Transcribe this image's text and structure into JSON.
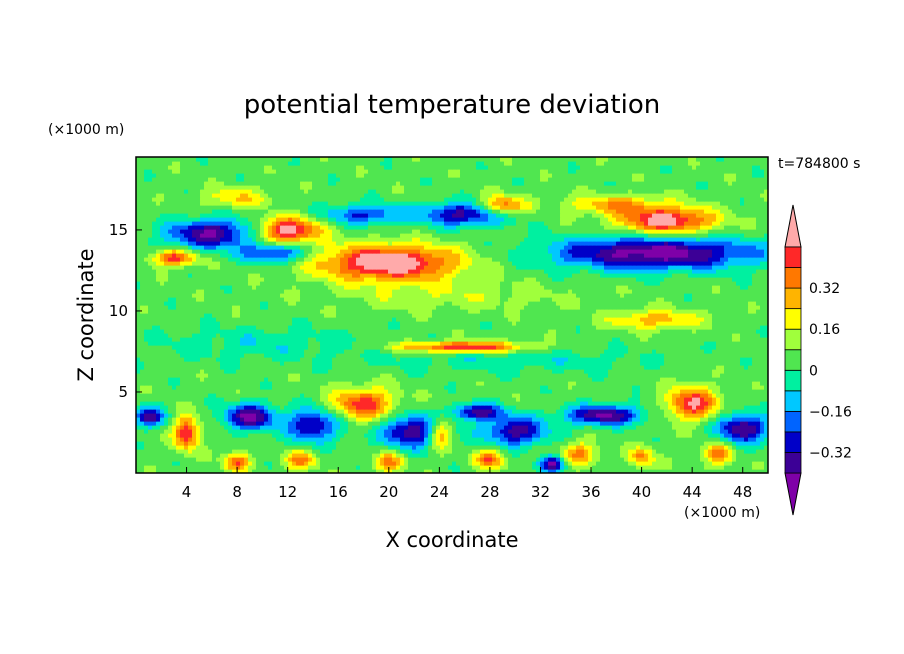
{
  "chart_data": {
    "type": "heatmap",
    "title": "potential temperature deviation",
    "xlabel": "X coordinate",
    "ylabel": "Z coordinate",
    "x_unit": "(×1000 m)",
    "y_unit": "(×1000 m)",
    "time_label": "t=784800 s",
    "xlim": [
      0,
      50
    ],
    "ylim": [
      0,
      19.5
    ],
    "x_ticks": [
      4,
      8,
      12,
      16,
      20,
      24,
      28,
      32,
      36,
      40,
      44,
      48
    ],
    "y_ticks": [
      5,
      10,
      15
    ],
    "colorbar": {
      "levels": [
        -0.48,
        -0.4,
        -0.32,
        -0.24,
        -0.16,
        -0.08,
        0,
        0.08,
        0.16,
        0.24,
        0.32,
        0.4,
        0.48
      ],
      "labels": [
        "0.32",
        "0.16",
        "0",
        "−0.16",
        "−0.32"
      ],
      "label_values": [
        0.32,
        0.16,
        0,
        -0.16,
        -0.32
      ],
      "colors": [
        "#7f00a8",
        "#3c0096",
        "#0000c8",
        "#0064ff",
        "#00c8ff",
        "#00f0a0",
        "#50e650",
        "#a0ff3c",
        "#ffff00",
        "#ffb400",
        "#ff7800",
        "#ff2828",
        "#ffaaaa"
      ]
    },
    "features": [
      {
        "x": 6,
        "z": 14.8,
        "v": -0.45,
        "sx": 3.5,
        "sz": 0.9
      },
      {
        "x": 12,
        "z": 15.0,
        "v": 0.5,
        "sx": 2.5,
        "sz": 0.8
      },
      {
        "x": 8,
        "z": 17.0,
        "v": 0.2,
        "sx": 2.5,
        "sz": 0.6
      },
      {
        "x": 20,
        "z": 13.0,
        "v": 0.55,
        "sx": 5.5,
        "sz": 1.1
      },
      {
        "x": 26,
        "z": 16.0,
        "v": -0.4,
        "sx": 3.5,
        "sz": 0.7
      },
      {
        "x": 18,
        "z": 16.0,
        "v": -0.3,
        "sx": 3.0,
        "sz": 0.6
      },
      {
        "x": 29,
        "z": 16.5,
        "v": 0.4,
        "sx": 1.8,
        "sz": 0.6
      },
      {
        "x": 42,
        "z": 15.6,
        "v": 0.5,
        "sx": 3.8,
        "sz": 0.8
      },
      {
        "x": 38,
        "z": 16.6,
        "v": 0.25,
        "sx": 4.0,
        "sz": 0.6
      },
      {
        "x": 41,
        "z": 13.6,
        "v": -0.5,
        "sx": 8.0,
        "sz": 1.0
      },
      {
        "x": 11,
        "z": 13.6,
        "v": -0.35,
        "sx": 2.5,
        "sz": 0.6
      },
      {
        "x": 3,
        "z": 13.3,
        "v": 0.4,
        "sx": 1.8,
        "sz": 0.5
      },
      {
        "x": 25,
        "z": 11.0,
        "v": 0.1,
        "sx": 9.0,
        "sz": 0.9
      },
      {
        "x": 41,
        "z": 9.5,
        "v": 0.25,
        "sx": 3.5,
        "sz": 0.6
      },
      {
        "x": 26,
        "z": 7.8,
        "v": 0.45,
        "sx": 5.0,
        "sz": 0.35
      },
      {
        "x": 10,
        "z": 8.0,
        "v": -0.1,
        "sx": 8.0,
        "sz": 1.0
      },
      {
        "x": 30,
        "z": 7.0,
        "v": -0.1,
        "sx": 10.0,
        "sz": 0.8
      },
      {
        "x": 18,
        "z": 4.3,
        "v": 0.4,
        "sx": 2.5,
        "sz": 1.0
      },
      {
        "x": 44,
        "z": 4.3,
        "v": 0.45,
        "sx": 2.0,
        "sz": 1.0
      },
      {
        "x": 4,
        "z": 2.5,
        "v": 0.45,
        "sx": 1.0,
        "sz": 1.0
      },
      {
        "x": 24,
        "z": 2.5,
        "v": 0.4,
        "sx": 1.0,
        "sz": 1.0
      },
      {
        "x": 9,
        "z": 3.5,
        "v": -0.45,
        "sx": 2.0,
        "sz": 0.8
      },
      {
        "x": 14,
        "z": 3.0,
        "v": -0.4,
        "sx": 2.0,
        "sz": 1.0
      },
      {
        "x": 22,
        "z": 2.6,
        "v": -0.45,
        "sx": 2.5,
        "sz": 1.0
      },
      {
        "x": 30,
        "z": 2.6,
        "v": -0.4,
        "sx": 2.5,
        "sz": 0.9
      },
      {
        "x": 37,
        "z": 3.6,
        "v": -0.45,
        "sx": 3.0,
        "sz": 0.6
      },
      {
        "x": 48,
        "z": 2.8,
        "v": -0.45,
        "sx": 2.0,
        "sz": 0.9
      },
      {
        "x": 27,
        "z": 3.8,
        "v": -0.4,
        "sx": 2.0,
        "sz": 0.5
      },
      {
        "x": 1,
        "z": 3.5,
        "v": -0.4,
        "sx": 1.2,
        "sz": 0.6
      },
      {
        "x": 8,
        "z": 0.7,
        "v": 0.35,
        "sx": 1.0,
        "sz": 0.6
      },
      {
        "x": 13,
        "z": 0.8,
        "v": 0.3,
        "sx": 1.2,
        "sz": 0.6
      },
      {
        "x": 20,
        "z": 0.7,
        "v": 0.3,
        "sx": 1.2,
        "sz": 0.6
      },
      {
        "x": 28,
        "z": 0.9,
        "v": 0.35,
        "sx": 1.2,
        "sz": 0.6
      },
      {
        "x": 35,
        "z": 1.2,
        "v": 0.3,
        "sx": 1.5,
        "sz": 0.7
      },
      {
        "x": 40,
        "z": 1.0,
        "v": 0.3,
        "sx": 1.0,
        "sz": 0.6
      },
      {
        "x": 46,
        "z": 1.2,
        "v": 0.3,
        "sx": 1.2,
        "sz": 0.7
      },
      {
        "x": 33,
        "z": 0.6,
        "v": -0.45,
        "sx": 1.0,
        "sz": 0.5
      }
    ]
  }
}
